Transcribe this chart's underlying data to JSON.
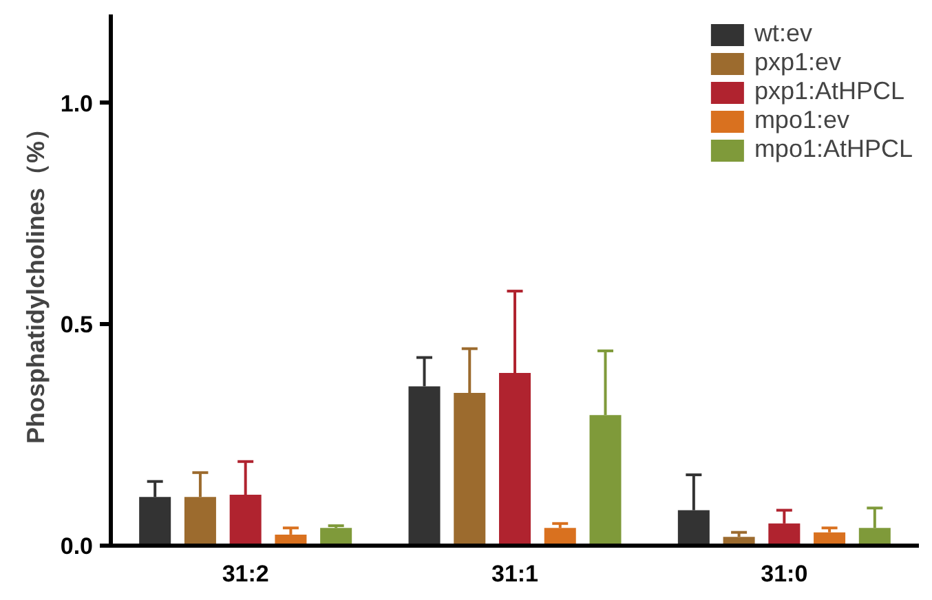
{
  "chart_data": {
    "type": "bar",
    "ylabel": "Phosphatidylcholines（%）",
    "categories": [
      "31:2",
      "31:1",
      "31:0"
    ],
    "series": [
      {
        "name": "wt:ev",
        "color": "#333333",
        "values": [
          0.11,
          0.36,
          0.08
        ],
        "errors": [
          [
            0.11,
            0.145
          ],
          [
            0.36,
            0.425
          ],
          [
            0.08,
            0.16
          ]
        ]
      },
      {
        "name": "pxp1:ev",
        "color": "#9c6b2e",
        "values": [
          0.11,
          0.345,
          0.02
        ],
        "errors": [
          [
            0.11,
            0.165
          ],
          [
            0.345,
            0.445
          ],
          [
            0.02,
            0.03
          ]
        ]
      },
      {
        "name": "pxp1:AtHPCL",
        "color": "#b0232f",
        "values": [
          0.115,
          0.39,
          0.05
        ],
        "errors": [
          [
            0.115,
            0.19
          ],
          [
            0.39,
            0.575
          ],
          [
            0.05,
            0.08
          ]
        ]
      },
      {
        "name": "mpo1:ev",
        "color": "#d9711f",
        "values": [
          0.025,
          0.04,
          0.03
        ],
        "errors": [
          [
            0.025,
            0.04
          ],
          [
            0.04,
            0.05
          ],
          [
            0.03,
            0.04
          ]
        ]
      },
      {
        "name": "mpo1:AtHPCL",
        "color": "#7f9a3a",
        "values": [
          0.04,
          0.295,
          0.04
        ],
        "errors": [
          [
            0.04,
            0.045
          ],
          [
            0.295,
            0.44
          ],
          [
            0.04,
            0.085
          ]
        ]
      }
    ],
    "ylim": [
      0,
      1.2
    ],
    "yticks": [
      {
        "value": 0,
        "label": "0.0"
      },
      {
        "value": 0.5,
        "label": "0.5"
      },
      {
        "value": 1.0,
        "label": "1.0"
      }
    ],
    "grid": false,
    "legend": "top right"
  }
}
